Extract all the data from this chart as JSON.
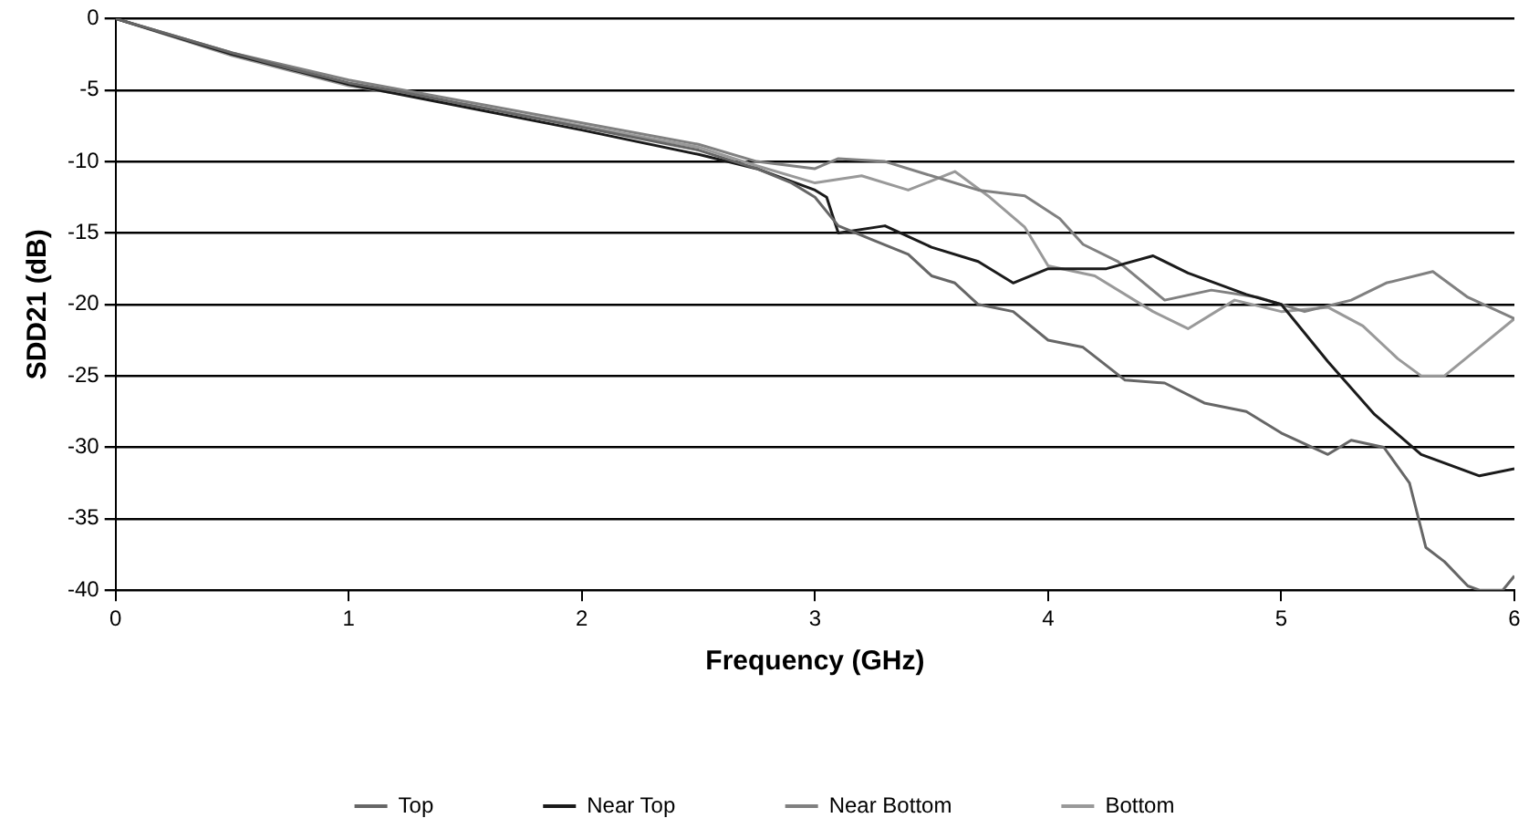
{
  "chart_data": {
    "type": "line",
    "xlabel": "Frequency (GHz)",
    "ylabel": "SDD21 (dB)",
    "xlim": [
      0,
      6
    ],
    "xticks": [
      0,
      1,
      2,
      3,
      4,
      5,
      6
    ],
    "ylim": [
      -40,
      0
    ],
    "yticks": [
      -40,
      -35,
      -30,
      -25,
      -20,
      -15,
      -10,
      -5,
      0
    ],
    "grid": "y",
    "legend": "bottom",
    "marker": "none",
    "line_style": "solid",
    "series": [
      {
        "name": "Top",
        "color": "#666666",
        "x": [
          0,
          0.25,
          0.5,
          0.75,
          1,
          1.25,
          1.5,
          1.75,
          2,
          2.25,
          2.5,
          2.75,
          2.9,
          3,
          3.1,
          3.25,
          3.4,
          3.5,
          3.6,
          3.7,
          3.85,
          4,
          4.15,
          4.33,
          4.5,
          4.67,
          4.85,
          5,
          5.2,
          5.3,
          5.44,
          5.55,
          5.62,
          5.7,
          5.8,
          5.85,
          5.95,
          6
        ],
        "values": [
          0,
          -1.2,
          -2.4,
          -3.5,
          -4.5,
          -5.2,
          -6,
          -6.8,
          -7.6,
          -8.4,
          -9.2,
          -10.5,
          -11.5,
          -12.5,
          -14.5,
          -15.5,
          -16.5,
          -18,
          -18.5,
          -20,
          -20.5,
          -22.5,
          -23,
          -25.3,
          -25.5,
          -26.9,
          -27.5,
          -29,
          -30.5,
          -29.5,
          -30,
          -32.5,
          -37,
          -38,
          -39.7,
          -40,
          -40,
          -39
        ]
      },
      {
        "name": "Near Top",
        "color": "#1a1a1a",
        "x": [
          0,
          0.5,
          1,
          1.5,
          2,
          2.5,
          2.75,
          3,
          3.05,
          3.1,
          3.3,
          3.5,
          3.7,
          3.85,
          4,
          4.25,
          4.45,
          4.6,
          4.85,
          5,
          5.2,
          5.4,
          5.6,
          5.85,
          6
        ],
        "values": [
          0,
          -2.5,
          -4.6,
          -6.2,
          -7.8,
          -9.5,
          -10.5,
          -12,
          -12.5,
          -15,
          -14.5,
          -16,
          -17,
          -18.5,
          -17.5,
          -17.5,
          -16.6,
          -17.8,
          -19.3,
          -20,
          -24,
          -27.7,
          -30.5,
          -32,
          -31.5
        ]
      },
      {
        "name": "Near Bottom",
        "color": "#808080",
        "x": [
          0,
          0.5,
          1,
          1.5,
          2,
          2.5,
          2.75,
          3,
          3.1,
          3.3,
          3.5,
          3.7,
          3.9,
          4.05,
          4.15,
          4.3,
          4.5,
          4.7,
          4.9,
          5.1,
          5.3,
          5.45,
          5.65,
          5.8,
          6
        ],
        "values": [
          0,
          -2.4,
          -4.3,
          -5.8,
          -7.3,
          -8.8,
          -10,
          -10.5,
          -9.8,
          -10,
          -11,
          -12,
          -12.4,
          -14,
          -15.8,
          -17,
          -19.7,
          -19,
          -19.5,
          -20.5,
          -19.7,
          -18.5,
          -17.7,
          -19.5,
          -21
        ]
      },
      {
        "name": "Bottom",
        "color": "#999999",
        "x": [
          0,
          0.5,
          1,
          1.5,
          2,
          2.5,
          2.75,
          3,
          3.2,
          3.4,
          3.6,
          3.75,
          3.9,
          4,
          4.2,
          4.45,
          4.6,
          4.8,
          5,
          5.2,
          5.35,
          5.5,
          5.6,
          5.7,
          5.85,
          6
        ],
        "values": [
          0,
          -2.6,
          -4.7,
          -6,
          -7.5,
          -9,
          -10.3,
          -11.5,
          -11,
          -12,
          -10.7,
          -12.5,
          -14.6,
          -17.3,
          -18,
          -20.5,
          -21.7,
          -19.7,
          -20.5,
          -20.2,
          -21.5,
          -23.8,
          -25,
          -25,
          -23,
          -21
        ]
      }
    ]
  }
}
